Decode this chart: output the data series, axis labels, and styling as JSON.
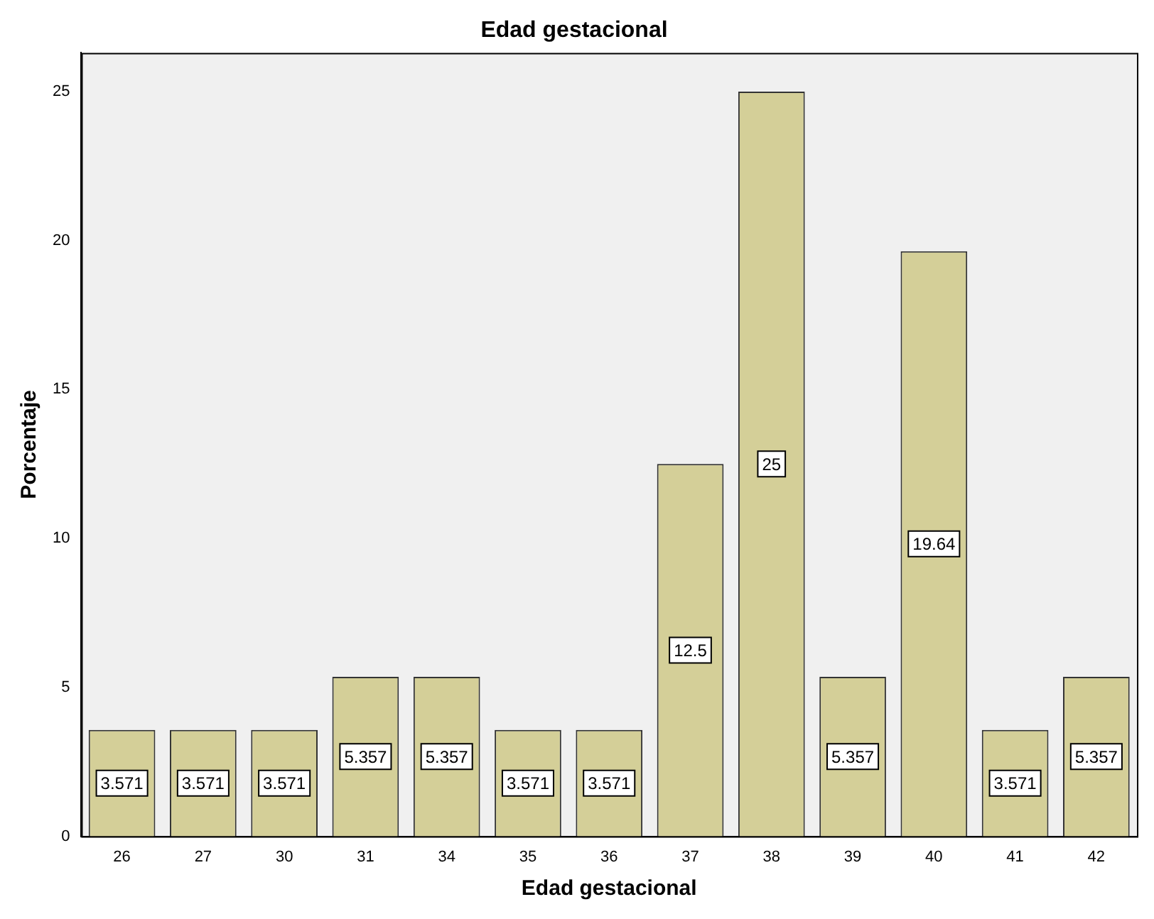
{
  "chart_data": {
    "type": "bar",
    "title": "Edad gestacional",
    "xlabel": "Edad gestacional",
    "ylabel": "Porcentaje",
    "categories": [
      "26",
      "27",
      "30",
      "31",
      "34",
      "35",
      "36",
      "37",
      "38",
      "39",
      "40",
      "41",
      "42"
    ],
    "values": [
      3.571,
      3.571,
      3.571,
      5.357,
      5.357,
      3.571,
      3.571,
      12.5,
      25,
      5.357,
      19.64,
      3.571,
      5.357
    ],
    "color": "#d4cf98",
    "ylim": [
      0,
      26.3
    ],
    "yticks": [
      0,
      5,
      10,
      15,
      20,
      25
    ],
    "grid": false,
    "legend": false,
    "data_labels": true
  }
}
